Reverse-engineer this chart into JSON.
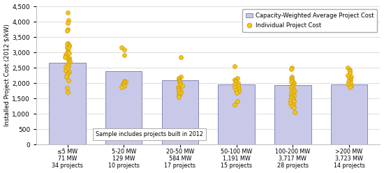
{
  "categories": [
    "≤5 MW\n71 MW\n34 projects",
    "5-20 MW\n129 MW\n10 projects",
    "20-50 MW\n584 MW\n17 projects",
    "50-100 MW\n1,191 MW\n15 projects",
    "100-200 MW\n3,717 MW\n28 projects",
    ">200 MW\n3,723 MW\n14 projects"
  ],
  "bar_heights": [
    2650,
    2380,
    2100,
    1950,
    1930,
    1950
  ],
  "bar_color": "#c8c8e8",
  "bar_edgecolor": "#8888bb",
  "dot_color": "#f5c518",
  "dot_edgecolor": "#c8960a",
  "ylim": [
    0,
    4500
  ],
  "yticks": [
    0,
    500,
    1000,
    1500,
    2000,
    2500,
    3000,
    3500,
    4000,
    4500
  ],
  "ylabel": "Installed Project Cost (2012 $/kW)",
  "annotation": "Sample includes projects built in 2012",
  "legend_bar_label": "Capacity-Weighted Average Project Cost",
  "legend_dot_label": "Individual Project Cost",
  "background_color": "#ffffff",
  "grid_color": "#dddddd",
  "dots": [
    [
      4300,
      4050,
      3950,
      3750,
      3700,
      3300,
      3270,
      3240,
      3200,
      3170,
      3140,
      3050,
      3000,
      2970,
      2940,
      2870,
      2840,
      2810,
      2770,
      2740,
      2700,
      2660,
      2620,
      2580,
      2530,
      2480,
      2420,
      2370,
      2320,
      2270,
      2200,
      2100,
      1850,
      1700
    ],
    [
      3150,
      3100,
      2900,
      2080,
      2050,
      2020,
      1980,
      1950,
      1900,
      1860
    ],
    [
      2850,
      2200,
      2160,
      2120,
      2080,
      2040,
      2000,
      1960,
      1910,
      1870,
      1830,
      1780,
      1740,
      1700,
      1650,
      1600,
      1550
    ],
    [
      2550,
      2160,
      2120,
      2080,
      2040,
      2000,
      1960,
      1920,
      1870,
      1830,
      1780,
      1740,
      1680,
      1420,
      1300
    ],
    [
      2500,
      2460,
      2200,
      2160,
      2120,
      2080,
      2040,
      2000,
      1960,
      1920,
      1880,
      1840,
      1800,
      1760,
      1720,
      1680,
      1640,
      1600,
      1560,
      1520,
      1480,
      1440,
      1400,
      1350,
      1300,
      1250,
      1200,
      1050
    ],
    [
      2500,
      2440,
      2380,
      2320,
      2260,
      2200,
      2160,
      2120,
      2080,
      2040,
      2000,
      1960,
      1900,
      1860
    ]
  ]
}
